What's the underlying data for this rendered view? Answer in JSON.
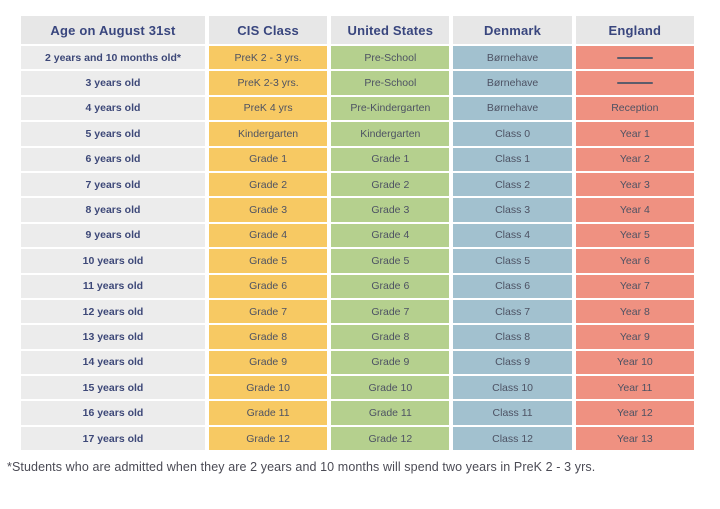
{
  "table": {
    "columns": [
      {
        "key": "age",
        "label": "Age on August 31st"
      },
      {
        "key": "cis",
        "label": "CIS Class"
      },
      {
        "key": "us",
        "label": "United States"
      },
      {
        "key": "denmark",
        "label": "Denmark"
      },
      {
        "key": "england",
        "label": "England"
      }
    ],
    "rows": [
      [
        "2 years and 10 months old*",
        "PreK 2 - 3 yrs.",
        "Pre-School",
        "Børnehave",
        "———"
      ],
      [
        "3 years old",
        "PreK 2-3 yrs.",
        "Pre-School",
        "Børnehave",
        "———"
      ],
      [
        "4 years old",
        "PreK 4 yrs",
        "Pre-Kindergarten",
        "Børnehave",
        "Reception"
      ],
      [
        "5 years old",
        "Kindergarten",
        "Kindergarten",
        "Class 0",
        "Year 1"
      ],
      [
        "6 years old",
        "Grade 1",
        "Grade 1",
        "Class 1",
        "Year 2"
      ],
      [
        "7 years old",
        "Grade 2",
        "Grade 2",
        "Class 2",
        "Year 3"
      ],
      [
        "8 years old",
        "Grade 3",
        "Grade 3",
        "Class 3",
        "Year 4"
      ],
      [
        "9 years old",
        "Grade 4",
        "Grade 4",
        "Class 4",
        "Year 5"
      ],
      [
        "10 years old",
        "Grade 5",
        "Grade 5",
        "Class 5",
        "Year 6"
      ],
      [
        "11 years old",
        "Grade 6",
        "Grade 6",
        "Class 6",
        "Year 7"
      ],
      [
        "12 years old",
        "Grade 7",
        "Grade 7",
        "Class 7",
        "Year 8"
      ],
      [
        "13 years old",
        "Grade 8",
        "Grade 8",
        "Class 8",
        "Year 9"
      ],
      [
        "14 years old",
        "Grade 9",
        "Grade 9",
        "Class 9",
        "Year 10"
      ],
      [
        "15 years old",
        "Grade 10",
        "Grade 10",
        "Class 10",
        "Year 11"
      ],
      [
        "16 years old",
        "Grade 11",
        "Grade 11",
        "Class 11",
        "Year 12"
      ],
      [
        "17 years old",
        "Grade 12",
        "Grade 12",
        "Class 12",
        "Year 13"
      ]
    ],
    "dash_marker": "———"
  },
  "footnote": "*Students who are admitted when they are 2 years and 10 months will spend two years in PreK 2 - 3 yrs.",
  "colors": {
    "page_bg": "#ffffff",
    "header_bg": "#e7e7e7",
    "header_text": "#39467e",
    "age_bg": "#ececec",
    "age_text": "#3d4878",
    "cell_text": "#4d5263",
    "cis_bg": "#f7c963",
    "us_bg": "#b5d08e",
    "denmark_bg": "#a2c1cf",
    "england_bg": "#ef9181",
    "dash_color": "#5c5c6b",
    "footnote_text": "#4b4b55"
  }
}
